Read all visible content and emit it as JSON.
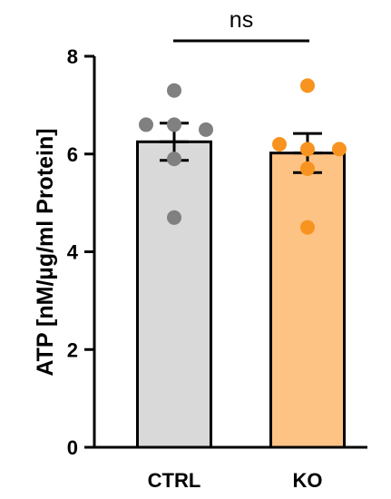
{
  "chart_data": {
    "type": "bar",
    "categories": [
      "CTRL",
      "KO"
    ],
    "ylabel": "ATP [nM/µg/ml Protein]",
    "ylim": [
      0,
      8
    ],
    "yticks": [
      "0",
      "2",
      "4",
      "6",
      "8"
    ],
    "series": [
      {
        "values": [
          6.25,
          6.02
        ],
        "sem": [
          0.38,
          0.4
        ],
        "bar_colors": [
          "#d9d9d9",
          "#fdc385"
        ],
        "point_colors": [
          "#808080",
          "#f7931e"
        ],
        "points": [
          [
            7.3,
            6.6,
            6.6,
            6.5,
            5.9,
            4.7
          ],
          [
            7.4,
            6.2,
            6.1,
            6.1,
            5.7,
            4.5
          ]
        ]
      }
    ],
    "significance": {
      "label": "ns",
      "between": [
        "CTRL",
        "KO"
      ]
    }
  }
}
